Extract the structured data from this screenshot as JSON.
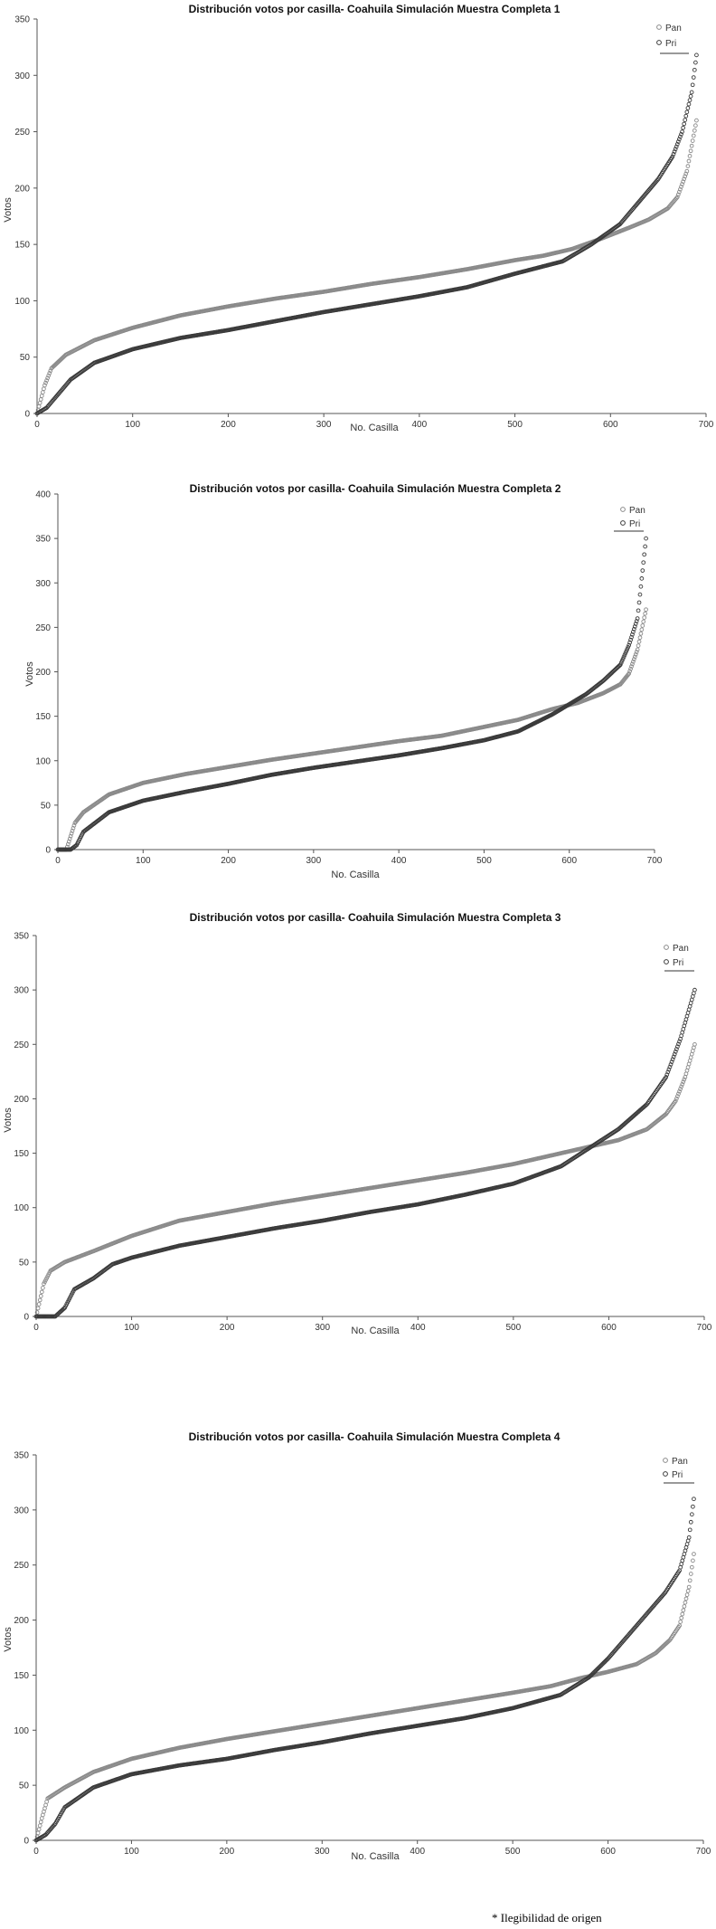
{
  "colors": {
    "series_pan": "#8a8a8a",
    "series_pri": "#3a3a3a",
    "axis": "#555555",
    "background": "#ffffff"
  },
  "footnote": "* Ilegibilidad de origen",
  "chart_data": [
    {
      "type": "scatter",
      "title": "Distribución votos por casilla- Coahuila Simulación Muestra Completa 1",
      "xlabel": "No. Casilla",
      "ylabel": "Votos",
      "xlim": [
        0,
        700
      ],
      "ylim": [
        0,
        350
      ],
      "xticks": [
        "0",
        "100",
        "200",
        "300",
        "400",
        "500",
        "600",
        "700"
      ],
      "yticks": [
        "0",
        "50",
        "100",
        "150",
        "200",
        "250",
        "300",
        "350"
      ],
      "legend_position": "top-right",
      "grid": false,
      "n_points": 690,
      "series": [
        {
          "name": "Pan",
          "x": [
            0,
            8,
            15,
            30,
            60,
            100,
            150,
            200,
            250,
            300,
            350,
            400,
            450,
            500,
            530,
            560,
            590,
            620,
            640,
            660,
            670,
            680,
            690
          ],
          "y": [
            0,
            25,
            40,
            52,
            65,
            76,
            87,
            95,
            102,
            108,
            115,
            121,
            128,
            136,
            140,
            146,
            155,
            165,
            172,
            182,
            192,
            215,
            260
          ]
        },
        {
          "name": "Pri",
          "x": [
            0,
            10,
            20,
            35,
            60,
            100,
            150,
            200,
            250,
            300,
            350,
            400,
            450,
            500,
            550,
            580,
            610,
            630,
            650,
            665,
            675,
            685,
            690
          ],
          "y": [
            0,
            5,
            15,
            30,
            45,
            57,
            67,
            74,
            82,
            90,
            97,
            104,
            112,
            124,
            135,
            150,
            168,
            188,
            208,
            228,
            250,
            285,
            318
          ]
        }
      ]
    },
    {
      "type": "scatter",
      "title": "Distribución votos por casilla- Coahuila Simulación Muestra Completa 2",
      "xlabel": "No. Casilla",
      "ylabel": "Votos",
      "xlim": [
        0,
        700
      ],
      "ylim": [
        0,
        400
      ],
      "xticks": [
        "0",
        "100",
        "200",
        "300",
        "400",
        "500",
        "600",
        "700"
      ],
      "yticks": [
        "0",
        "50",
        "100",
        "150",
        "200",
        "250",
        "300",
        "350",
        "400"
      ],
      "legend_position": "top-right",
      "grid": false,
      "n_points": 690,
      "series": [
        {
          "name": "Pan",
          "x": [
            0,
            10,
            20,
            30,
            60,
            100,
            150,
            200,
            250,
            300,
            350,
            400,
            450,
            500,
            540,
            580,
            610,
            640,
            660,
            670,
            680,
            690
          ],
          "y": [
            0,
            0,
            30,
            42,
            62,
            75,
            85,
            93,
            101,
            108,
            115,
            122,
            128,
            138,
            146,
            158,
            165,
            176,
            186,
            198,
            225,
            270
          ]
        },
        {
          "name": "Pri",
          "x": [
            0,
            15,
            22,
            30,
            60,
            100,
            150,
            200,
            250,
            300,
            350,
            400,
            450,
            500,
            540,
            580,
            620,
            640,
            660,
            670,
            680,
            690
          ],
          "y": [
            0,
            0,
            5,
            20,
            42,
            55,
            65,
            74,
            84,
            92,
            99,
            106,
            114,
            123,
            133,
            152,
            175,
            190,
            208,
            230,
            260,
            350
          ]
        }
      ]
    },
    {
      "type": "scatter",
      "title": "Distribución votos por casilla- Coahuila Simulación Muestra Completa 3",
      "xlabel": "No. Casilla",
      "ylabel": "Votos",
      "xlim": [
        0,
        700
      ],
      "ylim": [
        0,
        350
      ],
      "xticks": [
        "0",
        "100",
        "200",
        "300",
        "400",
        "500",
        "600",
        "700"
      ],
      "yticks": [
        "0",
        "50",
        "100",
        "150",
        "200",
        "250",
        "300",
        "350"
      ],
      "legend_position": "top-right",
      "grid": false,
      "n_points": 690,
      "series": [
        {
          "name": "Pan",
          "x": [
            0,
            8,
            15,
            30,
            60,
            100,
            150,
            200,
            250,
            300,
            350,
            400,
            450,
            500,
            540,
            580,
            610,
            640,
            660,
            670,
            680,
            690
          ],
          "y": [
            0,
            30,
            42,
            50,
            60,
            74,
            88,
            96,
            104,
            111,
            118,
            125,
            132,
            140,
            148,
            156,
            162,
            172,
            186,
            198,
            220,
            250
          ]
        },
        {
          "name": "Pri",
          "x": [
            0,
            20,
            30,
            40,
            60,
            80,
            100,
            150,
            200,
            250,
            300,
            350,
            400,
            450,
            500,
            550,
            580,
            610,
            640,
            660,
            675,
            690
          ],
          "y": [
            0,
            0,
            8,
            25,
            35,
            48,
            54,
            65,
            73,
            81,
            88,
            96,
            103,
            112,
            122,
            138,
            155,
            172,
            195,
            220,
            255,
            300
          ]
        }
      ]
    },
    {
      "type": "scatter",
      "title": "Distribución votos por casilla- Coahuila Simulación Muestra Completa 4",
      "xlabel": "No. Casilla",
      "ylabel": "Votos",
      "xlim": [
        0,
        700
      ],
      "ylim": [
        0,
        350
      ],
      "xticks": [
        "0",
        "100",
        "200",
        "300",
        "400",
        "500",
        "600",
        "700"
      ],
      "yticks": [
        "0",
        "50",
        "100",
        "150",
        "200",
        "250",
        "300",
        "350"
      ],
      "legend_position": "top-right",
      "grid": false,
      "n_points": 690,
      "series": [
        {
          "name": "Pan",
          "x": [
            0,
            6,
            12,
            30,
            60,
            100,
            150,
            200,
            250,
            300,
            350,
            400,
            450,
            500,
            540,
            570,
            600,
            630,
            650,
            665,
            675,
            685,
            690
          ],
          "y": [
            0,
            20,
            38,
            48,
            62,
            74,
            84,
            92,
            99,
            106,
            113,
            120,
            127,
            134,
            140,
            147,
            153,
            160,
            170,
            182,
            195,
            230,
            260
          ]
        },
        {
          "name": "Pri",
          "x": [
            0,
            10,
            20,
            30,
            60,
            100,
            150,
            200,
            250,
            300,
            350,
            400,
            450,
            500,
            550,
            580,
            600,
            620,
            640,
            660,
            675,
            685,
            690
          ],
          "y": [
            0,
            5,
            15,
            30,
            48,
            60,
            68,
            74,
            82,
            89,
            97,
            104,
            111,
            120,
            132,
            148,
            165,
            185,
            205,
            225,
            245,
            275,
            310
          ]
        }
      ]
    }
  ]
}
